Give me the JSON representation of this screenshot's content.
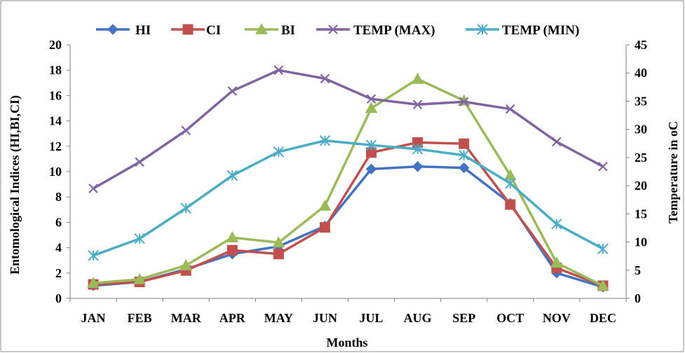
{
  "chart_data": {
    "type": "line",
    "categories": [
      "JAN",
      "FEB",
      "MAR",
      "APR",
      "MAY",
      "JUN",
      "JUL",
      "AUG",
      "SEP",
      "OCT",
      "NOV",
      "DEC"
    ],
    "xlabel": "Months",
    "ylabel": "Entomological Indices (HI,BI,CI)",
    "y2label": "Temperature in oC",
    "ylim": [
      0,
      20
    ],
    "y2lim": [
      0,
      45
    ],
    "yticks": [
      0,
      2,
      4,
      6,
      8,
      10,
      12,
      14,
      16,
      18,
      20
    ],
    "y2ticks": [
      0,
      5,
      10,
      15,
      20,
      25,
      30,
      35,
      40,
      45
    ],
    "grid": false,
    "legend_position": "top",
    "series": [
      {
        "name": "HI",
        "axis": "left",
        "marker": "diamond",
        "color": "#4472C4",
        "values": [
          1.0,
          1.3,
          2.3,
          3.5,
          4.1,
          5.7,
          10.2,
          10.4,
          10.3,
          7.5,
          2.0,
          0.9
        ]
      },
      {
        "name": "CI",
        "axis": "left",
        "marker": "square",
        "color": "#C0504D",
        "values": [
          1.1,
          1.3,
          2.2,
          3.8,
          3.5,
          5.6,
          11.5,
          12.3,
          12.2,
          7.4,
          2.4,
          1.0
        ]
      },
      {
        "name": "BI",
        "axis": "left",
        "marker": "triangle",
        "color": "#9BBB59",
        "values": [
          1.2,
          1.5,
          2.6,
          4.8,
          4.4,
          7.3,
          15.0,
          17.3,
          15.6,
          9.7,
          2.8,
          1.0
        ]
      },
      {
        "name": "TEMP (MAX)",
        "axis": "right",
        "marker": "x",
        "color": "#8064A2",
        "values": [
          19.5,
          24.2,
          29.8,
          36.8,
          40.5,
          39.0,
          35.4,
          34.4,
          34.9,
          33.6,
          27.8,
          23.4
        ]
      },
      {
        "name": "TEMP (MIN)",
        "axis": "right",
        "marker": "asterisk",
        "color": "#4BACC6",
        "values": [
          7.6,
          10.6,
          16.0,
          21.8,
          26.0,
          28.0,
          27.2,
          26.5,
          25.4,
          20.4,
          13.2,
          8.8
        ]
      }
    ]
  }
}
